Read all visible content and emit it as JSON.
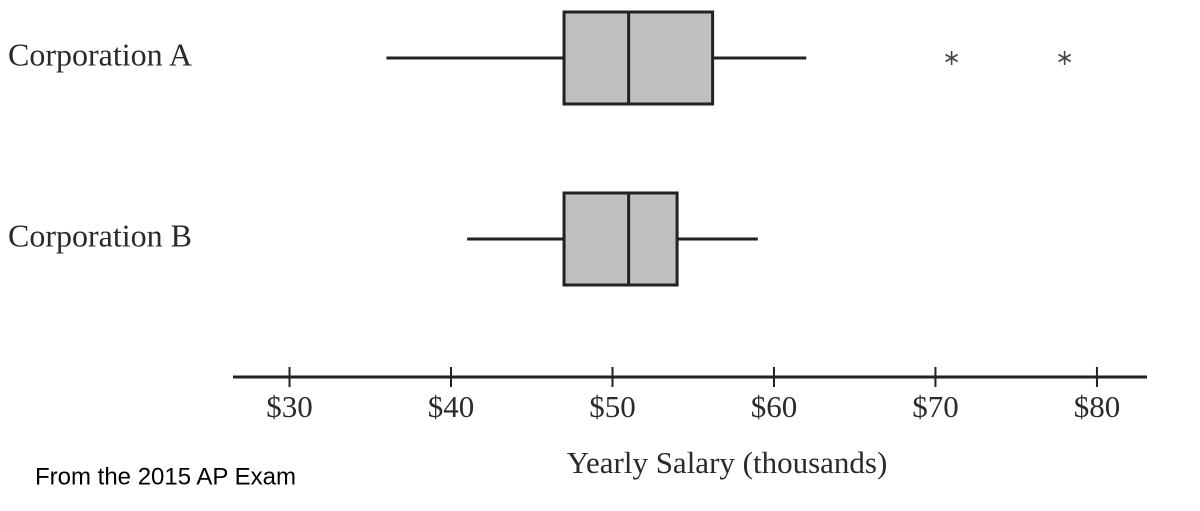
{
  "chart_data": {
    "type": "box",
    "categories": [
      "Corporation A",
      "Corporation B"
    ],
    "boxes": [
      {
        "min": 36,
        "q1": 47,
        "median": 51,
        "q3": 56.2,
        "max": 62,
        "outliers": [
          71,
          78
        ]
      },
      {
        "min": 41,
        "q1": 47,
        "median": 51,
        "q3": 54,
        "max": 59,
        "outliers": []
      }
    ],
    "color": "#c0c0c0",
    "xlabel": "Yearly Salary (thousands)",
    "xlim": [
      26.5,
      83.1
    ],
    "xticks": [
      {
        "value": 30,
        "label": "$30"
      },
      {
        "value": 40,
        "label": "$40"
      },
      {
        "value": 50,
        "label": "$50"
      },
      {
        "value": 60,
        "label": "$60"
      },
      {
        "value": 70,
        "label": "$70"
      },
      {
        "value": 80,
        "label": "$80"
      }
    ],
    "annotation": "From the 2015 AP Exam"
  }
}
